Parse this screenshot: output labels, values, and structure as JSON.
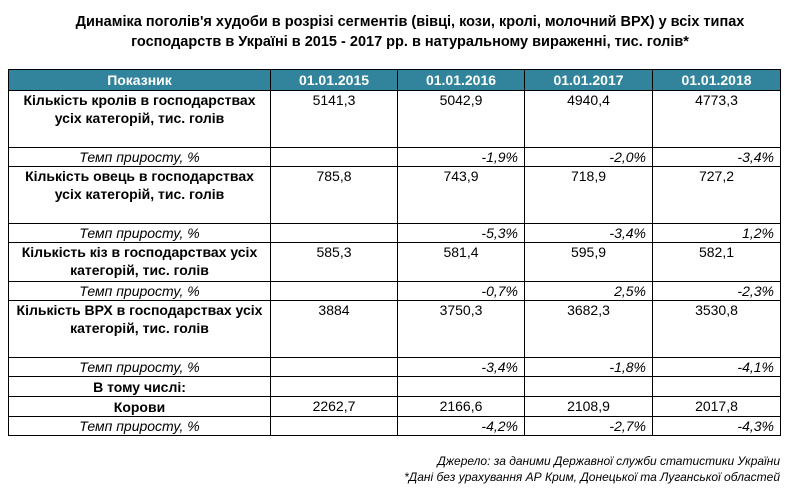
{
  "title": "Динаміка поголів'я худоби в розрізі сегментів (вівці, кози, кролі, молочний ВРХ) у всіх типах господарств в Україні в 2015 - 2017 рр. в натуральному вираженні, тис. голів*",
  "table": {
    "headers": [
      "Показник",
      "01.01.2015",
      "01.01.2016",
      "01.01.2017",
      "01.01.2018"
    ],
    "rows": [
      {
        "label": "Кількість кролів в господарствах усіх категорій, тис. голів",
        "values": [
          "5141,3",
          "5042,9",
          "4940,4",
          "4773,3"
        ]
      },
      {
        "label": "Темп приросту, %",
        "values": [
          "",
          "-1,9%",
          "-2,0%",
          "-3,4%"
        ]
      },
      {
        "label": "Кількість овець в господарствах усіх категорій, тис. голів",
        "values": [
          "785,8",
          "743,9",
          "718,9",
          "727,2"
        ]
      },
      {
        "label": "Темп приросту, %",
        "values": [
          "",
          "-5,3%",
          "-3,4%",
          "1,2%"
        ]
      },
      {
        "label": "Кількість кіз в господарствах усіх категорій, тис. голів",
        "values": [
          "585,3",
          "581,4",
          "595,9",
          "582,1"
        ]
      },
      {
        "label": "Темп приросту, %",
        "values": [
          "",
          "-0,7%",
          "2,5%",
          "-2,3%"
        ]
      },
      {
        "label": "Кількість ВРХ в господарствах усіх категорій, тис. голів",
        "values": [
          "3884",
          "3750,3",
          "3682,3",
          "3530,8"
        ]
      },
      {
        "label": "Темп приросту, %",
        "values": [
          "",
          "-3,4%",
          "-1,8%",
          "-4,1%"
        ]
      },
      {
        "label": "В тому числі:",
        "values": [
          "",
          "",
          "",
          ""
        ]
      },
      {
        "label": "Корови",
        "values": [
          "2262,7",
          "2166,6",
          "2108,9",
          "2017,8"
        ]
      },
      {
        "label": "Темп приросту, %",
        "values": [
          "",
          "-4,2%",
          "-2,7%",
          "-4,3%"
        ]
      }
    ]
  },
  "footnotes": {
    "source": "Джерело: за даними Державної служби статистики України",
    "note": "*Дані без урахування АР Крим, Донецької та Луганської областей"
  }
}
